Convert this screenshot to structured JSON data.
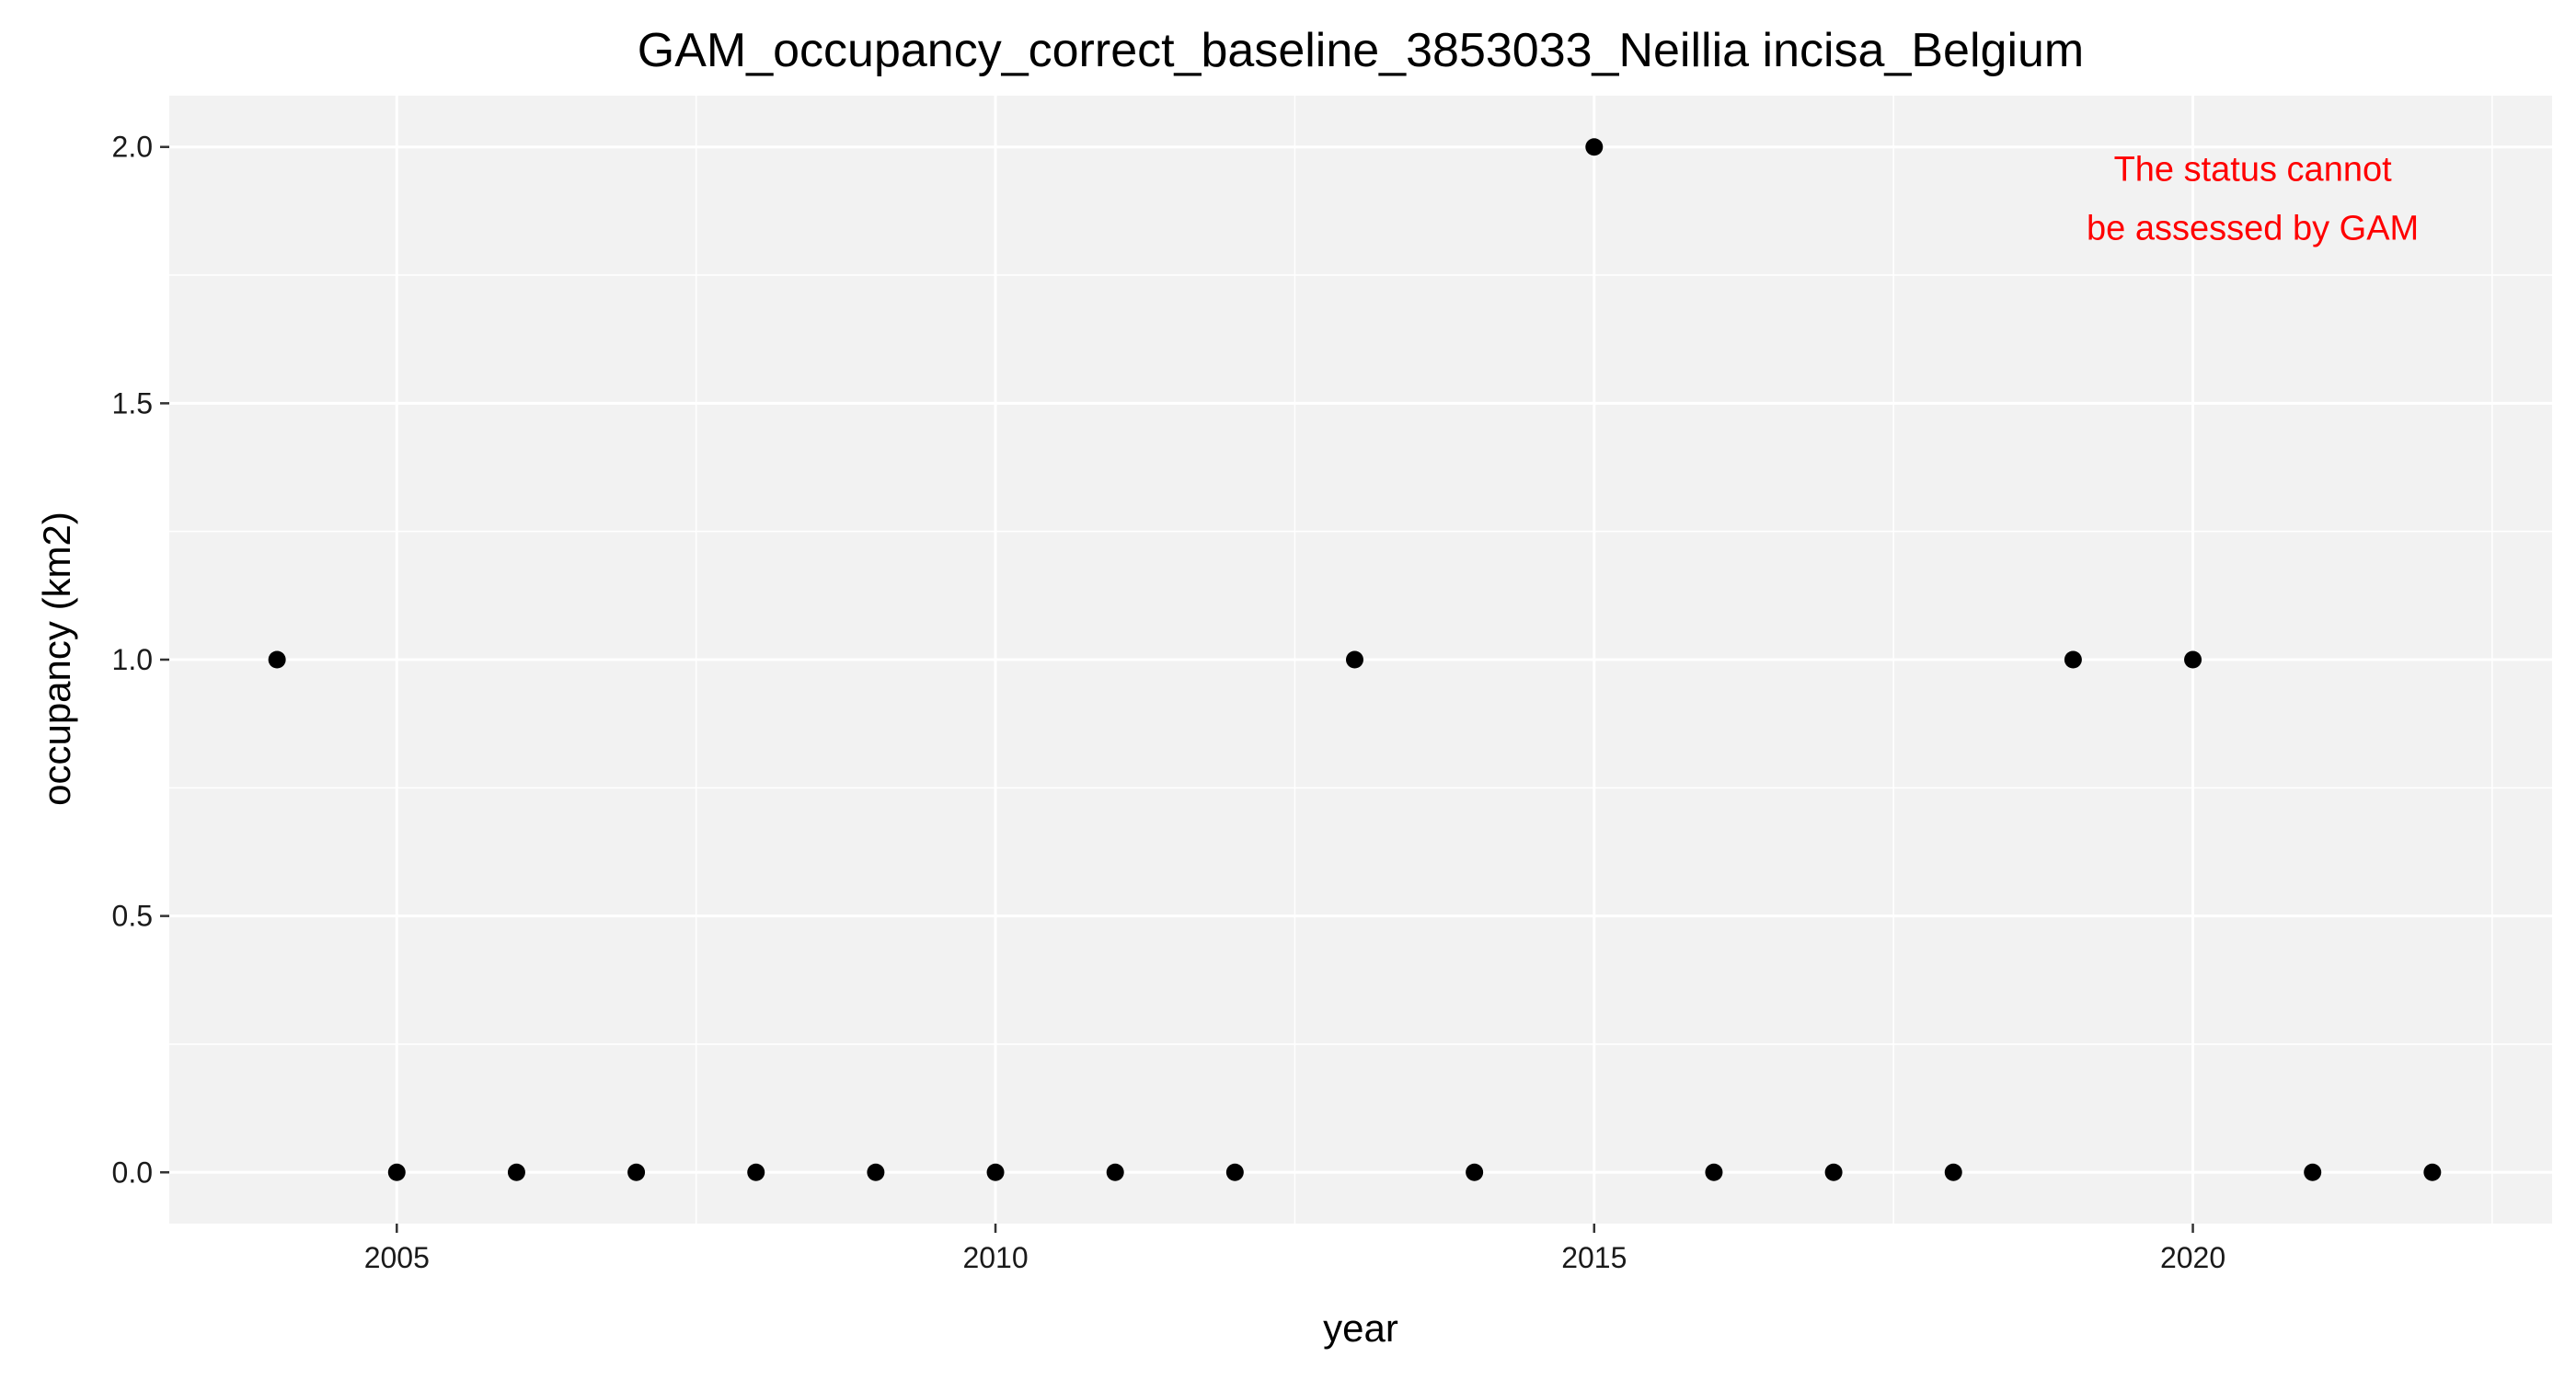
{
  "chart_data": {
    "type": "scatter",
    "title": "GAM_occupancy_correct_baseline_3853033_Neillia incisa_Belgium",
    "xlabel": "year",
    "ylabel": "occupancy (km2)",
    "xlim": [
      2003.1,
      2023.0
    ],
    "ylim": [
      -0.1,
      2.1
    ],
    "x_ticks": [
      2005,
      2010,
      2015,
      2020
    ],
    "y_ticks": [
      0.0,
      0.5,
      1.0,
      1.5,
      2.0
    ],
    "y_tick_labels": [
      "0.0",
      "0.5",
      "1.0",
      "1.5",
      "2.0"
    ],
    "grid": true,
    "legend": "none",
    "background_color": "#f2f2f2",
    "grid_color": "#ffffff",
    "point_color": "#000000",
    "annotation": {
      "lines": [
        "The status cannot",
        "be assessed by GAM"
      ],
      "color": "#ff0000",
      "x": 2020.5,
      "y": 1.9
    },
    "series": [
      {
        "x": [
          2004,
          2005,
          2006,
          2007,
          2008,
          2009,
          2010,
          2011,
          2012,
          2013,
          2014,
          2015,
          2016,
          2017,
          2018,
          2019,
          2020,
          2021,
          2022
        ],
        "y": [
          1,
          0,
          0,
          0,
          0,
          0,
          0,
          0,
          0,
          1,
          0,
          2,
          0,
          0,
          0,
          1,
          1,
          0,
          0
        ]
      }
    ]
  }
}
